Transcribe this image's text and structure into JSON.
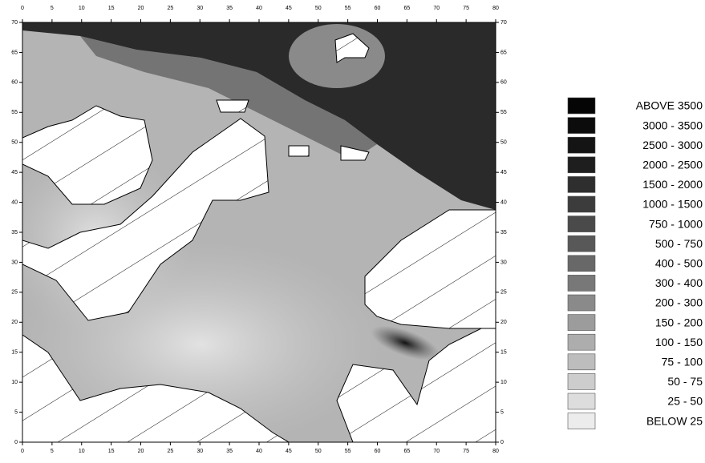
{
  "map": {
    "xticks": [
      0,
      5,
      10,
      15,
      20,
      25,
      30,
      35,
      40,
      45,
      50,
      55,
      60,
      65,
      70,
      75,
      80
    ],
    "yticks": [
      0,
      5,
      10,
      15,
      20,
      25,
      30,
      35,
      40,
      45,
      50,
      55,
      60,
      65,
      70
    ],
    "xlim": [
      0,
      80
    ],
    "ylim": [
      0,
      70
    ],
    "legend": [
      {
        "label": "ABOVE 3500",
        "color": "#050505"
      },
      {
        "label": "3000 - 3500",
        "color": "#0c0c0c"
      },
      {
        "label": "2500 - 3000",
        "color": "#141414"
      },
      {
        "label": "2000 - 2500",
        "color": "#1e1e1e"
      },
      {
        "label": "1500 - 2000",
        "color": "#2e2e2e"
      },
      {
        "label": "1000 - 1500",
        "color": "#3c3c3c"
      },
      {
        "label": "750 - 1000",
        "color": "#4a4a4a"
      },
      {
        "label": "500 - 750",
        "color": "#585858"
      },
      {
        "label": "400 - 500",
        "color": "#686868"
      },
      {
        "label": "300 - 400",
        "color": "#787878"
      },
      {
        "label": "200 - 300",
        "color": "#8a8a8a"
      },
      {
        "label": "150 - 200",
        "color": "#9c9c9c"
      },
      {
        "label": "100 - 150",
        "color": "#adadad"
      },
      {
        "label": "75 - 100",
        "color": "#bdbdbd"
      },
      {
        "label": "50 - 75",
        "color": "#cdcdcd"
      },
      {
        "label": "25 - 50",
        "color": "#dddddd"
      },
      {
        "label": "BELOW 25",
        "color": "#ececec"
      }
    ]
  }
}
